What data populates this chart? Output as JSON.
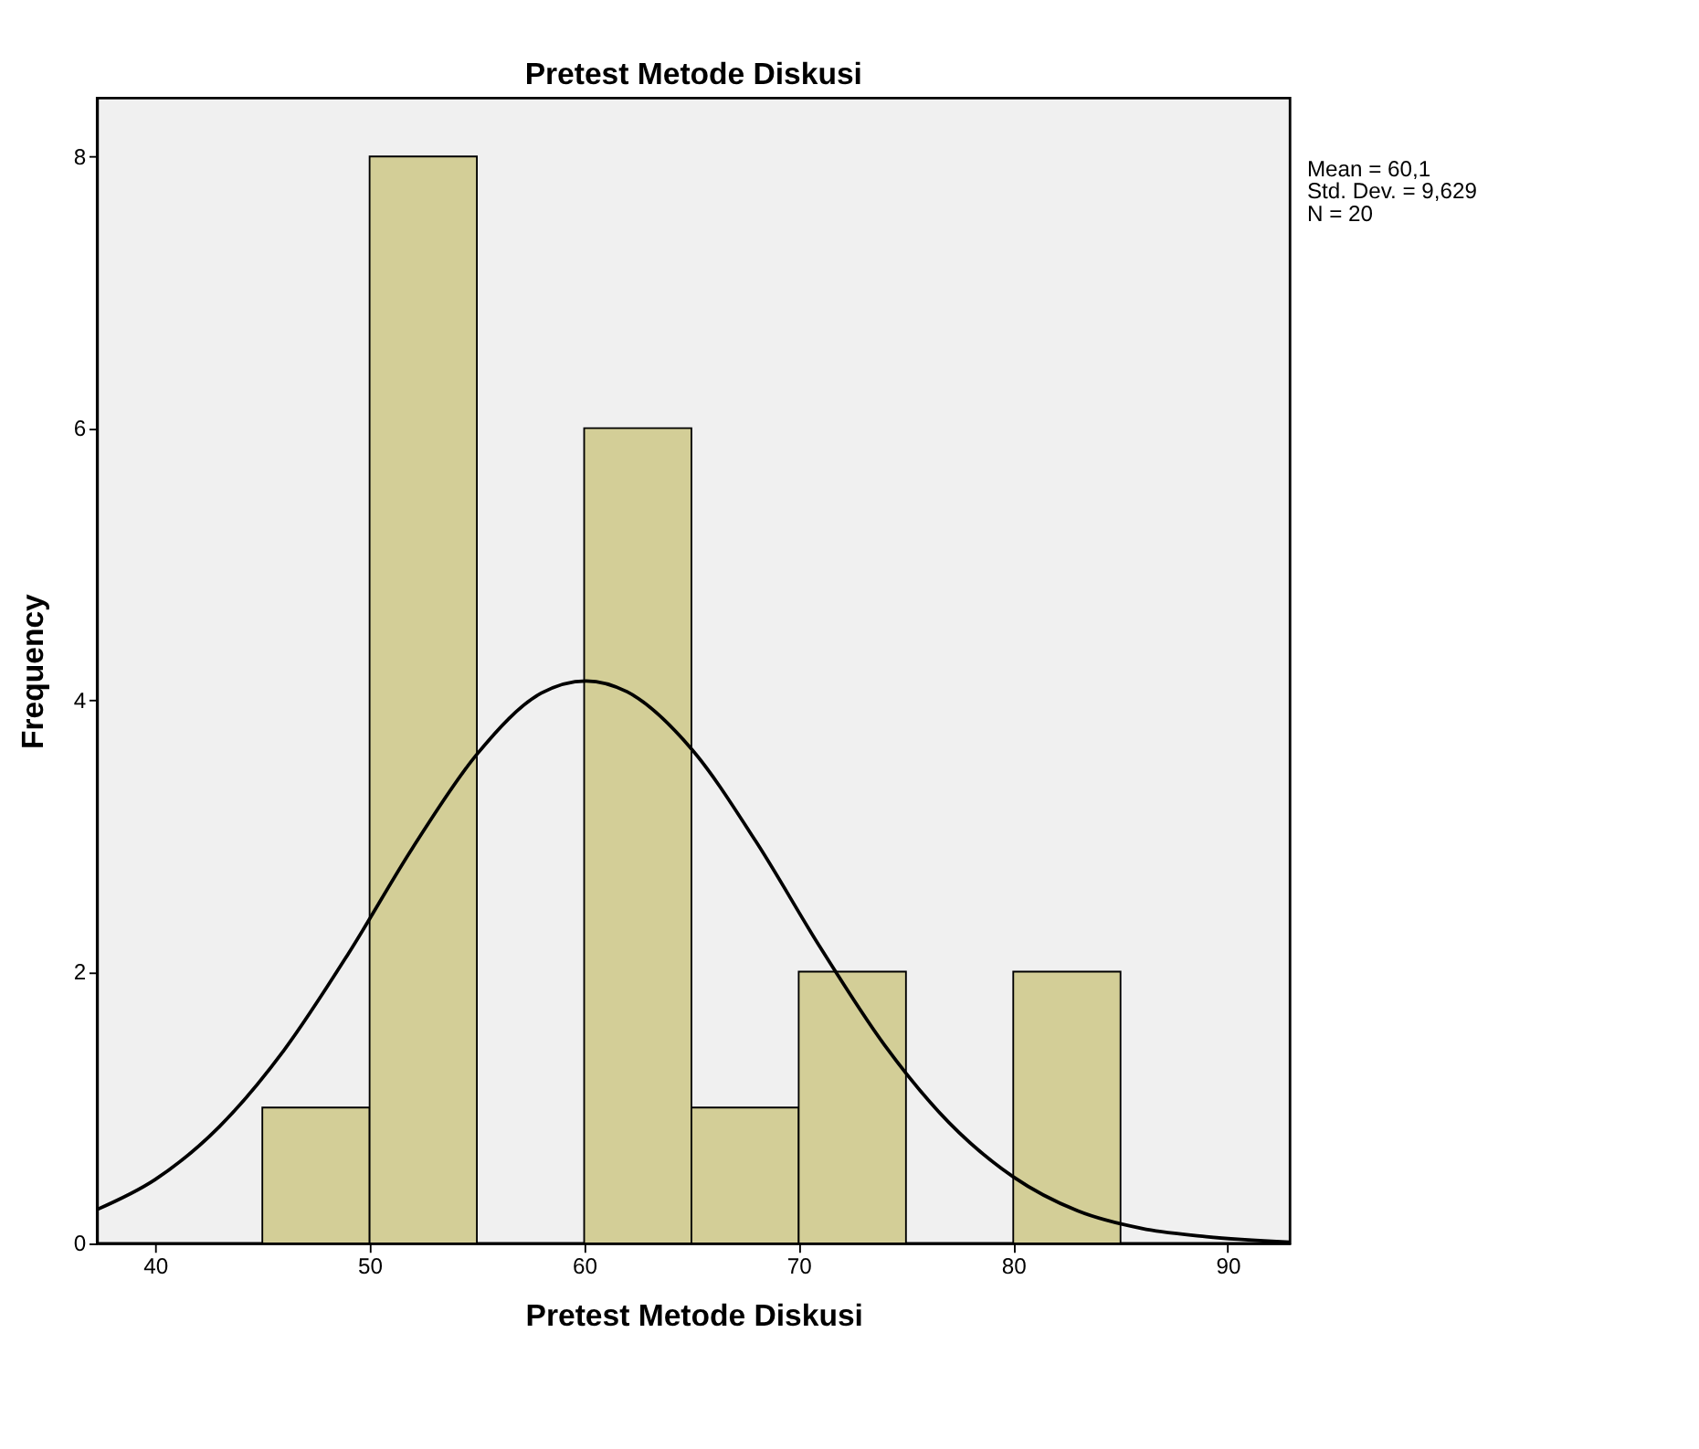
{
  "chart_data": {
    "type": "histogram",
    "title": "Pretest Metode Diskusi",
    "xlabel": "Pretest Metode Diskusi",
    "ylabel": "Frequency",
    "bins": [
      45,
      50,
      55,
      60,
      65,
      70,
      75,
      80,
      85
    ],
    "values": [
      1,
      8,
      0,
      6,
      1,
      2,
      0,
      2
    ],
    "color": "#d3ce97",
    "series": [
      {
        "type": "line",
        "color": "#000000",
        "x": [
          37.3,
          40,
          43,
          46,
          49,
          52,
          55,
          58,
          60.1,
          62,
          65,
          68,
          71,
          74,
          77,
          80,
          83,
          86,
          89,
          92.9
        ],
        "values": [
          0.25,
          0.47,
          0.86,
          1.42,
          2.13,
          2.91,
          3.6,
          4.05,
          4.14,
          4.06,
          3.64,
          2.96,
          2.18,
          1.46,
          0.89,
          0.49,
          0.24,
          0.11,
          0.05,
          0.01
        ]
      }
    ],
    "xlim": [
      37.3,
      92.9
    ],
    "xticks": [
      40,
      50,
      60,
      70,
      80,
      90
    ],
    "ylim": [
      0,
      8.43
    ],
    "yticks": [
      0,
      2,
      4,
      6,
      8
    ],
    "grid": false,
    "annotations": [
      "Mean = 60,1",
      "Std. Dev. = 9,629",
      "N = 20"
    ]
  }
}
